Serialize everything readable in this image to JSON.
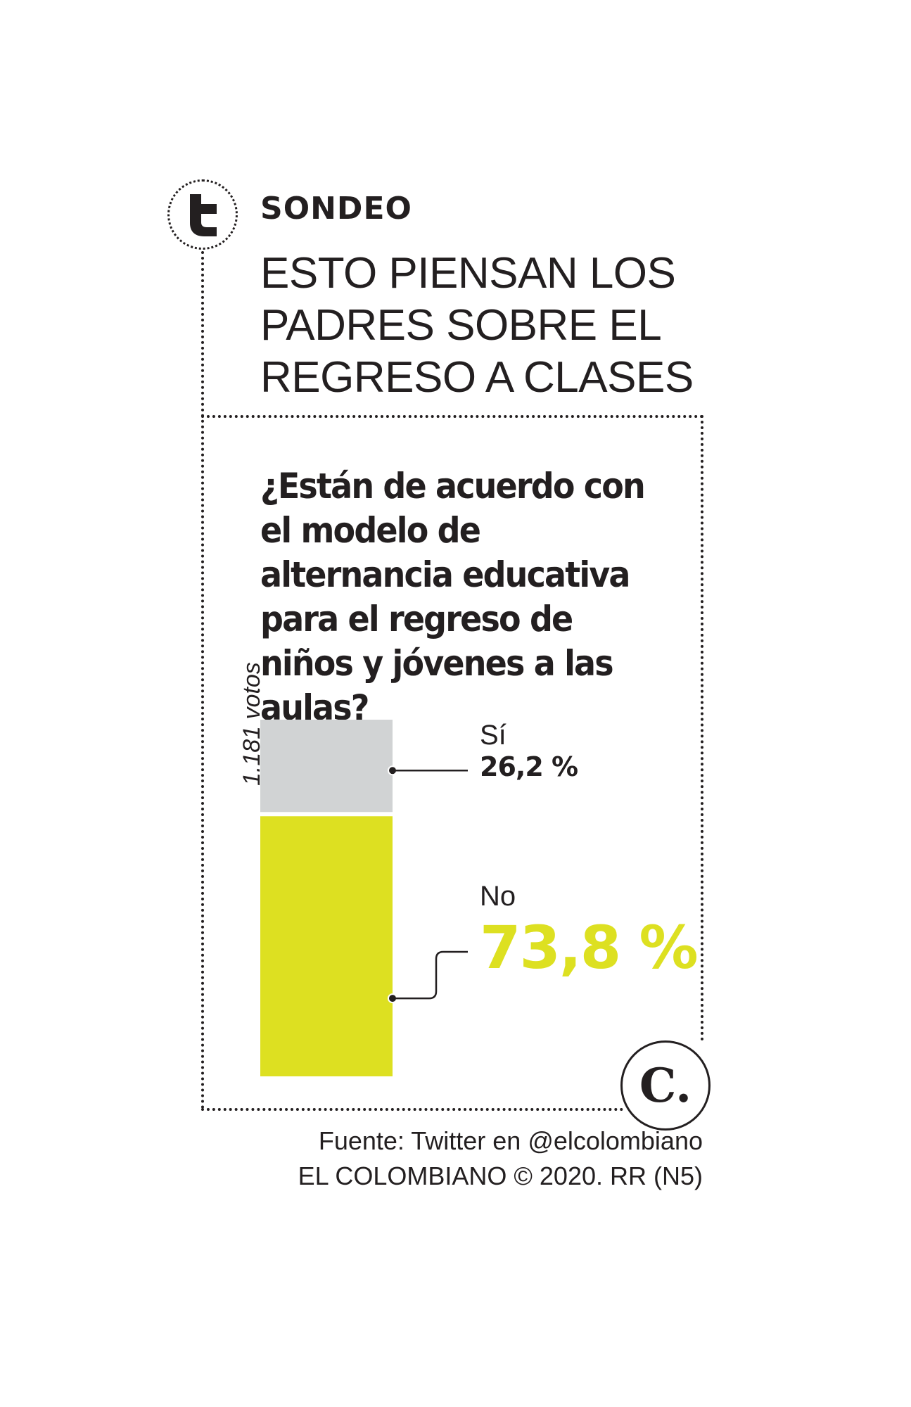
{
  "header": {
    "section_label": "SONDEO",
    "headline": [
      "ESTO PIENSAN LOS",
      "PADRES SOBRE EL",
      "REGRESO A CLASES"
    ]
  },
  "question": "¿Están de acuerdo con el modelo de alternancia educativa para el regreso de niños y jóvenes a las aulas?",
  "votes_label": "1.181 votos",
  "chart_data": {
    "type": "bar",
    "subtype": "stacked-100",
    "title": "¿Están de acuerdo con el modelo de alternancia educativa para el regreso de niños y jóvenes a las aulas?",
    "total_votes": 1181,
    "categories": [
      "Sí",
      "No"
    ],
    "values": [
      26.2,
      73.8
    ],
    "value_labels": [
      "26,2 %",
      "73,8 %"
    ],
    "unit": "%",
    "colors": [
      "#d1d3d4",
      "#dde021"
    ],
    "ylim": [
      0,
      100
    ],
    "legend": "none",
    "grid": false
  },
  "icons": {
    "social": "twitter-icon",
    "brand": "el-colombiano-logo"
  },
  "logo_letter": "C.",
  "footer": {
    "source": "Fuente: Twitter en @elcolombiano",
    "credit": "EL COLOMBIANO © 2020. RR (N5)"
  },
  "colors": {
    "text": "#231f20",
    "accent": "#dde021",
    "neutral": "#d1d3d4"
  }
}
